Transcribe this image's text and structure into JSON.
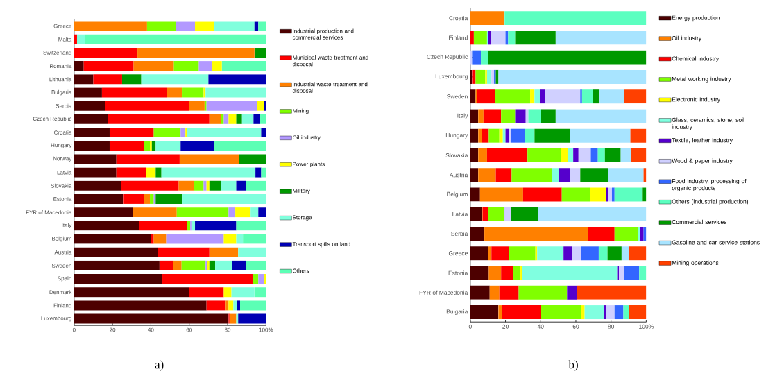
{
  "chart_data": [
    {
      "type": "bar",
      "orientation": "horizontal",
      "stacked": true,
      "legend": "right",
      "categories": [
        "Greece",
        "Malta",
        "Switzerland",
        "Romania",
        "Lithuania",
        "Bulgaria",
        "Serbia",
        "Czech Republic",
        "Croatia",
        "Hungary",
        "Norway",
        "Latvia",
        "Slovakia",
        "Estonia",
        "FYR of Macedonia",
        "Italy",
        "Belgium",
        "Austria",
        "Sweden",
        "Spain",
        "Denmark",
        "Finland",
        "Luxembourg"
      ],
      "xlim": [
        0,
        100
      ],
      "xticks": [
        0,
        20,
        40,
        60,
        80,
        {
          "value": 100,
          "label": "100%"
        }
      ],
      "annotations": [
        "a)"
      ],
      "series": [
        {
          "name": "Industrial production and commercial services",
          "color": "#4d0000",
          "values": [
            null,
            null,
            null,
            5,
            10,
            14.5,
            16,
            17.5,
            18.5,
            18.5,
            22,
            22,
            24.5,
            25.5,
            30.5,
            34,
            40,
            43.5,
            44.5,
            46,
            60,
            69,
            80.5
          ]
        },
        {
          "name": "Municipal waste treatment and disposal",
          "color": "#ff0000",
          "values": [
            null,
            1.5,
            33,
            26,
            15,
            34,
            44,
            53,
            23,
            18,
            33,
            15.5,
            30,
            11,
            null,
            25,
            1.5,
            27,
            7,
            47,
            18,
            10,
            0.5
          ]
        },
        {
          "name": "Industrial waste treatment and disposal",
          "color": "#ff8000",
          "values": [
            38,
            null,
            61,
            21,
            null,
            8,
            8,
            6,
            null,
            null,
            31,
            null,
            8,
            3,
            23,
            null,
            6.5,
            15,
            4.5,
            null,
            null,
            1.5,
            3.5
          ]
        },
        {
          "name": "Mining",
          "color": "#80ff00",
          "values": [
            15,
            null,
            null,
            13,
            null,
            11,
            1,
            1.5,
            14,
            3,
            null,
            null,
            5,
            2,
            27,
            1.5,
            null,
            null,
            12.5,
            3,
            null,
            null,
            null
          ]
        },
        {
          "name": "Oil industry",
          "color": "#b399ff",
          "values": [
            10,
            null,
            null,
            7,
            null,
            null,
            26.5,
            2.5,
            2.5,
            null,
            null,
            null,
            1.5,
            1,
            3.5,
            1,
            30,
            null,
            1,
            3,
            null,
            null,
            null
          ]
        },
        {
          "name": "Power plants",
          "color": "#ffff00",
          "values": [
            10,
            null,
            null,
            5,
            null,
            1,
            3.5,
            4,
            1,
            1,
            null,
            5,
            1.5,
            null,
            8,
            null,
            6.5,
            null,
            1,
            1,
            4,
            2.5,
            null
          ]
        },
        {
          "name": "Military",
          "color": "#009900",
          "values": [
            null,
            null,
            6,
            null,
            10,
            null,
            null,
            3,
            null,
            2,
            14,
            3,
            6,
            14,
            null,
            null,
            null,
            null,
            3,
            null,
            null,
            null,
            null
          ]
        },
        {
          "name": "Storage",
          "color": "#80ffdd",
          "values": [
            21,
            4,
            null,
            null,
            35,
            31.5,
            null,
            6,
            38.5,
            13,
            null,
            49,
            8,
            43.5,
            4,
            1.5,
            3.5,
            14.5,
            9,
            null,
            12,
            2,
            1
          ]
        },
        {
          "name": "Transport spills on land",
          "color": "#0000b3",
          "values": [
            2,
            null,
            null,
            null,
            30,
            null,
            1,
            3.5,
            2.5,
            17.5,
            null,
            3,
            5,
            null,
            4,
            21.5,
            null,
            null,
            7,
            null,
            null,
            1.5,
            14.5
          ]
        },
        {
          "name": "Others",
          "color": "#5cffb5",
          "values": [
            4,
            94.5,
            null,
            23,
            null,
            null,
            null,
            3,
            null,
            27,
            null,
            2.5,
            10.5,
            null,
            null,
            15.5,
            12,
            null,
            10.5,
            null,
            6,
            13.5,
            null
          ]
        }
      ]
    },
    {
      "type": "bar",
      "orientation": "horizontal",
      "stacked": true,
      "legend": "right",
      "categories": [
        "Croatia",
        "Finland",
        "Czech Republic",
        "Luxembourg",
        "Sweden",
        "Italy",
        "Hungary",
        "Slovakia",
        "Austria",
        "Belgium",
        "Latvia",
        "Serbia",
        "Greece",
        "Estonia",
        "FYR of Macedonia",
        "Bulgaria"
      ],
      "xlim": [
        0,
        100
      ],
      "xticks": [
        0,
        20,
        40,
        60,
        80,
        {
          "value": 100,
          "label": "100%"
        }
      ],
      "annotations": [
        "b)"
      ],
      "series": [
        {
          "name": "Energy production",
          "color": "#4d0000",
          "values": [
            null,
            null,
            null,
            1,
            3,
            4.5,
            4.5,
            4.5,
            4.5,
            5.5,
            6.5,
            8,
            10,
            10.5,
            11,
            16
          ]
        },
        {
          "name": "Oil industry",
          "color": "#ff8000",
          "values": [
            19.5,
            null,
            null,
            null,
            1,
            3,
            2,
            5,
            10,
            24.5,
            0.5,
            59,
            2,
            7,
            5.5,
            2
          ]
        },
        {
          "name": "Chemical industry",
          "color": "#ff0000",
          "values": [
            null,
            2,
            null,
            2,
            10,
            10,
            4,
            23,
            9,
            22,
            3,
            15,
            10,
            7,
            11,
            22
          ]
        },
        {
          "name": "Metal working industry",
          "color": "#80ff00",
          "values": [
            null,
            7.5,
            null,
            5.5,
            20,
            8,
            6,
            19,
            23,
            16,
            9,
            13.5,
            15,
            4,
            27.5,
            23
          ]
        },
        {
          "name": "Electronic industry",
          "color": "#ffff00",
          "values": [
            null,
            null,
            null,
            1,
            2.5,
            null,
            2,
            4,
            null,
            9,
            null,
            null,
            1,
            1,
            null,
            2
          ]
        },
        {
          "name": "Glass, ceramics, stone, soil industry",
          "color": "#80ffe0",
          "values": [
            null,
            0.5,
            null,
            2.5,
            3,
            null,
            1.5,
            3,
            4,
            null,
            null,
            1,
            15,
            54,
            null,
            11
          ]
        },
        {
          "name": "Textile, leather industry",
          "color": "#5500cc",
          "values": [
            null,
            1.5,
            null,
            null,
            3,
            6,
            2,
            3,
            6,
            1.5,
            0.5,
            2,
            5,
            1,
            5.5,
            1
          ]
        },
        {
          "name": "Wood & paper industry",
          "color": "#d0d0ff",
          "values": [
            null,
            8.5,
            1,
            1.5,
            20,
            1.5,
            1,
            7,
            6,
            2,
            3.5,
            null,
            5,
            3,
            null,
            5
          ]
        },
        {
          "name": "Food industry, processing of organic products",
          "color": "#3366ff",
          "values": [
            null,
            1.5,
            5,
            1,
            1,
            null,
            8,
            4,
            null,
            1.5,
            null,
            1.5,
            10,
            8.5,
            null,
            5
          ]
        },
        {
          "name": "Others (industrial production)",
          "color": "#5cffc0",
          "values": [
            80.5,
            4,
            4,
            null,
            6,
            7,
            5.5,
            4,
            null,
            16,
            null,
            null,
            5,
            4,
            null,
            3
          ]
        },
        {
          "name": "Commercial services",
          "color": "#009900",
          "values": [
            null,
            23,
            90,
            1.5,
            4,
            8.5,
            20,
            9,
            16,
            2,
            15.5,
            null,
            8,
            null,
            null,
            null
          ]
        },
        {
          "name": "Gasoline and car service stations",
          "color": "#a8e4ff",
          "values": [
            null,
            51.5,
            null,
            84,
            14,
            51.5,
            34.5,
            6,
            20,
            null,
            61.5,
            null,
            4,
            null,
            null,
            null
          ]
        },
        {
          "name": "Mining operations",
          "color": "#ff4000",
          "values": [
            null,
            null,
            null,
            null,
            12.5,
            null,
            9,
            8.5,
            1.5,
            null,
            null,
            null,
            10,
            null,
            39.5,
            10
          ]
        }
      ]
    }
  ]
}
